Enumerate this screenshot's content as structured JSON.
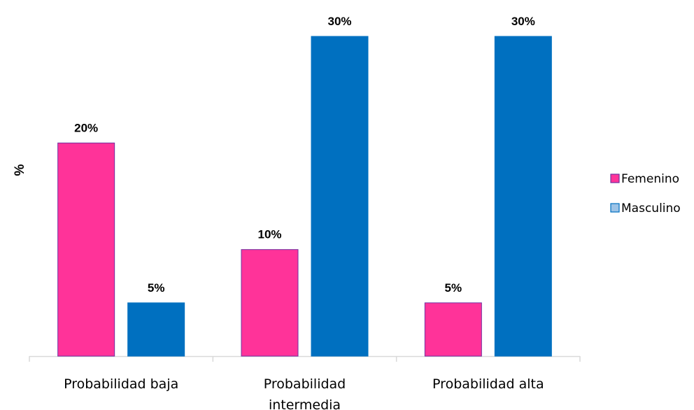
{
  "chart_data": {
    "type": "bar",
    "title": "",
    "xlabel": "",
    "ylabel": "%",
    "categories": [
      [
        "Probabilidad baja"
      ],
      [
        "Probabilidad",
        "intermedia"
      ],
      [
        "Probabilidad alta"
      ]
    ],
    "series": [
      {
        "name": "Femenino",
        "values": [
          20,
          10,
          5
        ],
        "labels": [
          "20%",
          "10%",
          "5%"
        ],
        "color": "#ff3399",
        "stroke": "#7030a0"
      },
      {
        "name": "Masculino",
        "values": [
          5,
          30,
          30
        ],
        "labels": [
          "5%",
          "30%",
          "30%"
        ],
        "color": "#0070c0",
        "stroke": "#0070c0"
      }
    ],
    "ylim": [
      0,
      30
    ],
    "grid": false,
    "legend_position": "right",
    "legend_swatch_colors": [
      "#ff3399",
      "#9dc3e6"
    ],
    "legend_swatch_strokes": [
      "#7030a0",
      "#0070c0"
    ]
  }
}
